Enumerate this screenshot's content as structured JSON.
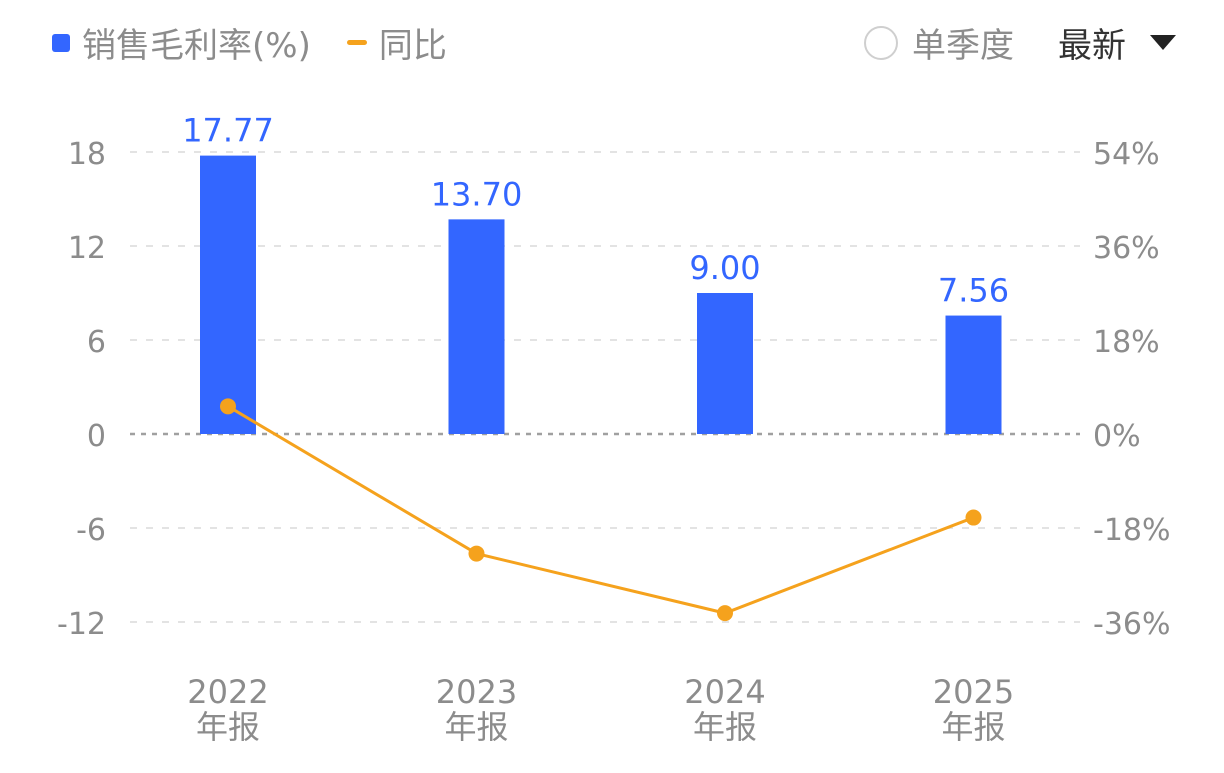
{
  "legend": {
    "bar_label": "销售毛利率(%)",
    "line_label": "同比"
  },
  "controls": {
    "single_quarter_label": "单季度",
    "period_value": "最新"
  },
  "colors": {
    "bar": "#3366ff",
    "line": "#f5a21d",
    "axis_text": "#8c8c8c",
    "value_label": "#3366ff",
    "grid": "#e3e3e3",
    "zero_line": "#a0a0a0"
  },
  "chart_data": {
    "type": "bar",
    "categories": [
      "2022\n年报",
      "2023\n年报",
      "2024\n年报",
      "2025\n年报"
    ],
    "series": [
      {
        "name": "销售毛利率(%)",
        "type": "bar",
        "axis": "left",
        "values": [
          17.77,
          13.7,
          9.0,
          7.56
        ],
        "labels": [
          "17.77",
          "13.70",
          "9.00",
          "7.56"
        ]
      },
      {
        "name": "同比",
        "type": "line",
        "axis": "right",
        "values": [
          5.3,
          -22.9,
          -34.3,
          -16.0
        ]
      }
    ],
    "y_left": {
      "min": -12,
      "max": 18,
      "ticks": [
        18,
        12,
        6,
        0,
        -6,
        -12
      ],
      "tick_labels": [
        "18",
        "12",
        "6",
        "0",
        "-6",
        "-12"
      ]
    },
    "y_right": {
      "min": -36,
      "max": 54,
      "ticks": [
        54,
        36,
        18,
        0,
        -18,
        -36
      ],
      "tick_labels": [
        "54%",
        "36%",
        "18%",
        "0%",
        "-18%",
        "-36%"
      ]
    },
    "grid": true,
    "legend_position": "top-left"
  }
}
